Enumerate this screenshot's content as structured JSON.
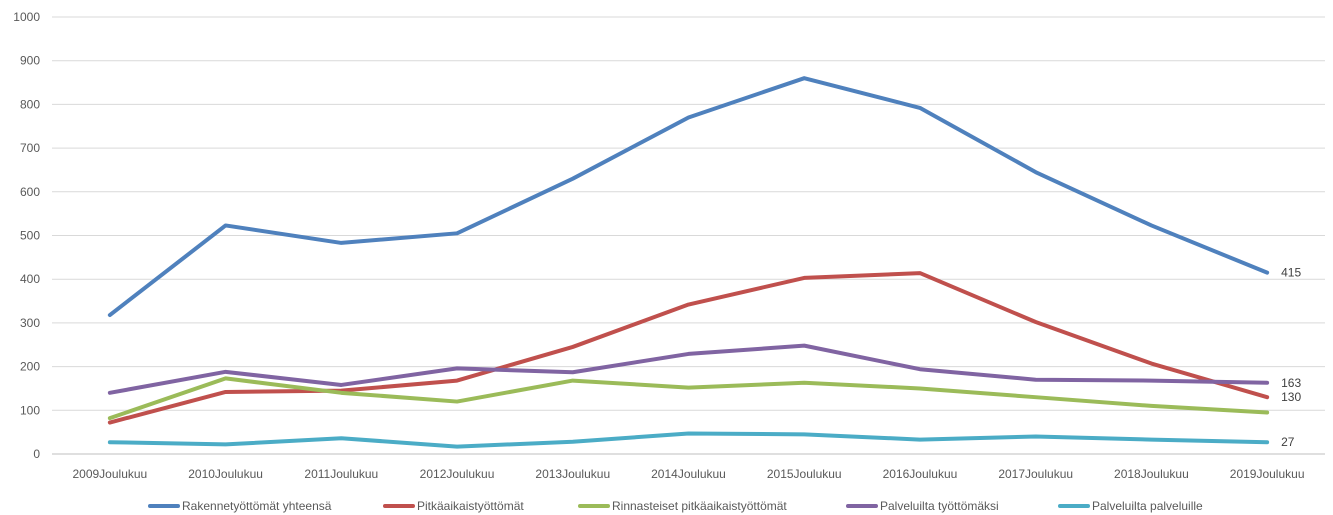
{
  "chart_data": {
    "type": "line",
    "categories": [
      "2009Joulukuu",
      "2010Joulukuu",
      "2011Joulukuu",
      "2012Joulukuu",
      "2013Joulukuu",
      "2014Joulukuu",
      "2015Joulukuu",
      "2016Joulukuu",
      "2017Joulukuu",
      "2018Joulukuu",
      "2019Joulukuu"
    ],
    "ylim": [
      0,
      1000
    ],
    "yticks": [
      0,
      100,
      200,
      300,
      400,
      500,
      600,
      700,
      800,
      900,
      1000
    ],
    "grid": true,
    "legend_position": "bottom",
    "series": [
      {
        "name": "Rakennetyöttömät yhteensä",
        "color": "#4F81BD",
        "values": [
          318,
          523,
          483,
          505,
          630,
          770,
          860,
          792,
          645,
          523,
          415
        ],
        "end_label": "415"
      },
      {
        "name": "Pitkäaikaistyöttömät",
        "color": "#C0504D",
        "values": [
          72,
          142,
          145,
          168,
          245,
          342,
          403,
          414,
          302,
          207,
          130
        ],
        "end_label": "130"
      },
      {
        "name": "Rinnasteiset pitkäaikaistyöttömät",
        "color": "#9BBB59",
        "values": [
          82,
          173,
          140,
          120,
          168,
          152,
          163,
          150,
          130,
          110,
          95
        ],
        "end_label": ""
      },
      {
        "name": "Palveluilta työttömäksi",
        "color": "#8064A2",
        "values": [
          140,
          188,
          158,
          196,
          187,
          229,
          248,
          194,
          170,
          168,
          163
        ],
        "end_label": "163"
      },
      {
        "name": "Palveluilta palveluille",
        "color": "#4BACC6",
        "values": [
          27,
          22,
          36,
          17,
          28,
          47,
          45,
          33,
          40,
          33,
          27
        ],
        "end_label": "27"
      }
    ]
  }
}
